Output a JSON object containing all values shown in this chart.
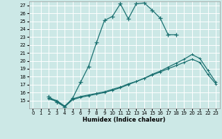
{
  "xlabel": "Humidex (Indice chaleur)",
  "bg_color": "#cce8e6",
  "line_color": "#1a7070",
  "grid_color": "#ffffff",
  "xlim": [
    -0.5,
    23.5
  ],
  "ylim": [
    14,
    27.5
  ],
  "xticks": [
    0,
    1,
    2,
    3,
    4,
    5,
    6,
    7,
    8,
    9,
    10,
    11,
    12,
    13,
    14,
    15,
    16,
    17,
    18,
    19,
    20,
    21,
    22,
    23
  ],
  "yticks": [
    15,
    16,
    17,
    18,
    19,
    20,
    21,
    22,
    23,
    24,
    25,
    26,
    27
  ],
  "line1_x": [
    2,
    3,
    4,
    5,
    6,
    7,
    8,
    9,
    10,
    11,
    12,
    13,
    14,
    15,
    16,
    17,
    18
  ],
  "line1_y": [
    15.5,
    14.8,
    14.2,
    15.3,
    17.3,
    19.3,
    22.3,
    25.1,
    25.6,
    27.2,
    25.3,
    27.2,
    27.3,
    26.4,
    25.4,
    23.3,
    23.3
  ],
  "line2_x": [
    2,
    3,
    4,
    5,
    6,
    7,
    8,
    9,
    10,
    11,
    12,
    13,
    14,
    15,
    16,
    17,
    18,
    19,
    20,
    21,
    22,
    23
  ],
  "line2_y": [
    15.2,
    14.9,
    14.2,
    15.1,
    15.4,
    15.6,
    15.8,
    16.0,
    16.3,
    16.6,
    17.0,
    17.4,
    17.8,
    18.3,
    18.7,
    19.2,
    19.7,
    20.2,
    20.8,
    20.3,
    18.8,
    17.3
  ],
  "line3_x": [
    2,
    3,
    4,
    5,
    6,
    7,
    8,
    9,
    10,
    11,
    12,
    13,
    14,
    15,
    16,
    17,
    18,
    19,
    20,
    21,
    22,
    23
  ],
  "line3_y": [
    15.3,
    15.0,
    14.3,
    15.2,
    15.5,
    15.7,
    15.9,
    16.1,
    16.4,
    16.7,
    17.1,
    17.4,
    17.8,
    18.2,
    18.6,
    19.0,
    19.4,
    19.8,
    20.2,
    19.8,
    18.3,
    17.1
  ]
}
